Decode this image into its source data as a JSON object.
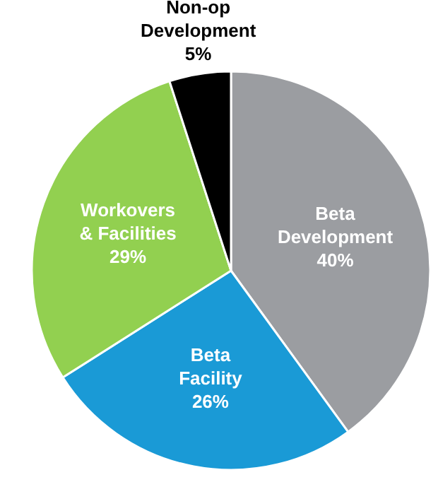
{
  "chart_data": {
    "type": "pie",
    "categories": [
      "Beta Development",
      "Beta Facility",
      "Workovers & Facilities",
      "Non-op Development"
    ],
    "values": [
      40,
      26,
      29,
      5
    ],
    "colors": [
      "#9b9da1",
      "#1a9ad6",
      "#92d050",
      "#000000"
    ],
    "value_labels": [
      "40%",
      "26%",
      "29%",
      "5%"
    ]
  }
}
